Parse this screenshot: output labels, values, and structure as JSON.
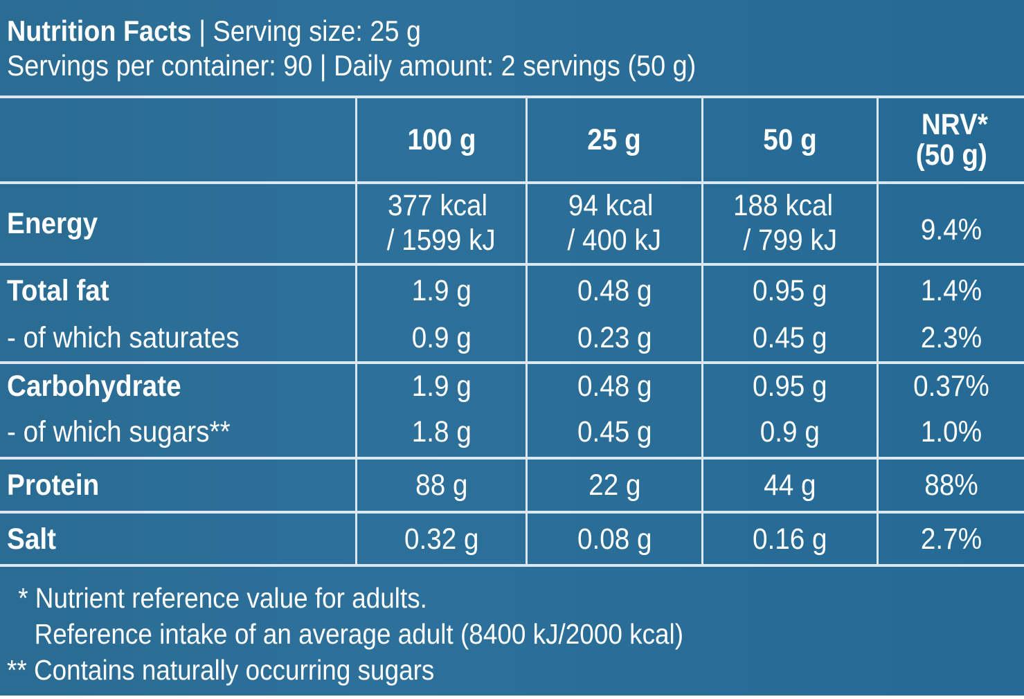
{
  "header": {
    "title": "Nutrition Facts",
    "serving_size": "| Serving size: 25 g",
    "servings_line": "Servings per container: 90 | Daily amount: 2 servings (50 g)"
  },
  "columns": {
    "col_100g": "100 g",
    "col_25g": "25 g",
    "col_50g": "50 g",
    "nrv_line1": "NRV*",
    "nrv_line2": "(50 g)"
  },
  "rows": {
    "energy": {
      "label": "Energy",
      "v100_l1": "377 kcal",
      "v100_l2": "/ 1599 kJ",
      "v25_l1": "94 kcal",
      "v25_l2": "/ 400 kJ",
      "v50_l1": "188 kcal",
      "v50_l2": "/ 799 kJ",
      "nrv": "9.4%"
    },
    "fat": {
      "label": "Total fat",
      "v100": "1.9 g",
      "v25": "0.48 g",
      "v50": "0.95 g",
      "nrv": "1.4%"
    },
    "saturates": {
      "label": "- of which saturates",
      "v100": "0.9 g",
      "v25": "0.23 g",
      "v50": "0.45 g",
      "nrv": "2.3%"
    },
    "carbohydrate": {
      "label": "Carbohydrate",
      "v100": "1.9 g",
      "v25": "0.48 g",
      "v50": "0.95 g",
      "nrv": "0.37%"
    },
    "sugars": {
      "label": "- of which sugars**",
      "v100": "1.8 g",
      "v25": "0.45 g",
      "v50": "0.9 g",
      "nrv": "1.0%"
    },
    "protein": {
      "label": "Protein",
      "v100": "88 g",
      "v25": "22 g",
      "v50": "44 g",
      "nrv": "88%"
    },
    "salt": {
      "label": "Salt",
      "v100": "0.32 g",
      "v25": "0.08 g",
      "v50": "0.16 g",
      "nrv": "2.7%"
    }
  },
  "footer": {
    "note1": "* Nutrient reference value for adults.",
    "note2": "Reference intake of an average adult (8400 kJ/2000 kcal)",
    "note3": "** Contains naturally occurring sugars"
  },
  "colors": {
    "background": "#2a6c93",
    "text": "#ffffff",
    "rule": "#dbe8f1"
  }
}
